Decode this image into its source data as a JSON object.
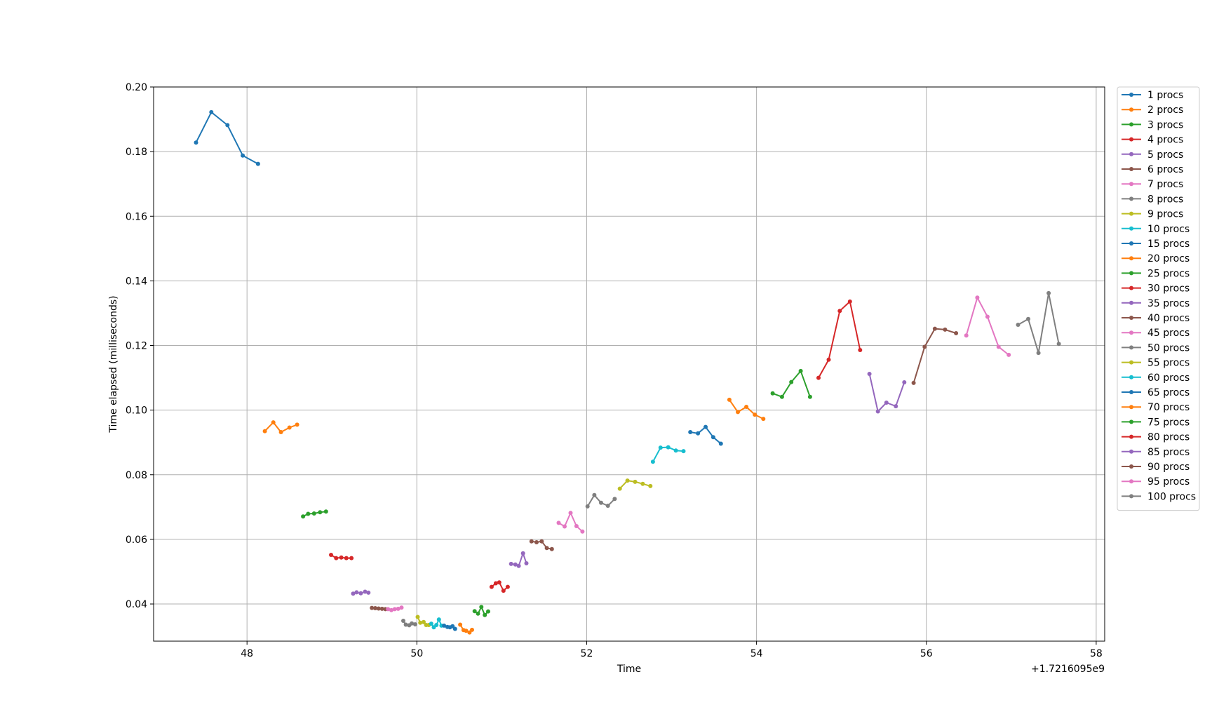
{
  "chart_data": {
    "type": "line",
    "title": "",
    "xlabel": "Time",
    "ylabel": "Time elapsed (milliseconds)",
    "x_offset_label": "+1.7216095e9",
    "xlim": [
      46.9,
      58.1
    ],
    "ylim": [
      0.0285,
      0.2
    ],
    "x_ticks": [
      48,
      50,
      52,
      54,
      56,
      58
    ],
    "x_tick_labels": [
      "48",
      "50",
      "52",
      "54",
      "56",
      "58"
    ],
    "y_ticks": [
      0.04,
      0.06,
      0.08,
      0.1,
      0.12,
      0.14,
      0.16,
      0.18,
      0.2
    ],
    "y_tick_labels": [
      "0.04",
      "0.06",
      "0.08",
      "0.10",
      "0.12",
      "0.14",
      "0.16",
      "0.18",
      "0.20"
    ],
    "grid": true,
    "legend_position": "outside-right",
    "series": [
      {
        "name": "1 procs",
        "color": "#1f77b4",
        "x": [
          47.4,
          47.58,
          47.77,
          47.95,
          48.13
        ],
        "y": [
          0.1828,
          0.1922,
          0.1882,
          0.1788,
          0.1762
        ]
      },
      {
        "name": "2 procs",
        "color": "#ff7f0e",
        "x": [
          48.21,
          48.31,
          48.4,
          48.5,
          48.59
        ],
        "y": [
          0.0935,
          0.0962,
          0.0932,
          0.0946,
          0.0955
        ]
      },
      {
        "name": "3 procs",
        "color": "#2ca02c",
        "x": [
          48.66,
          48.72,
          48.79,
          48.86,
          48.93
        ],
        "y": [
          0.0671,
          0.0679,
          0.068,
          0.0684,
          0.0686
        ]
      },
      {
        "name": "4 procs",
        "color": "#d62728",
        "x": [
          48.99,
          49.05,
          49.11,
          49.17,
          49.23
        ],
        "y": [
          0.0552,
          0.0542,
          0.0544,
          0.0542,
          0.0542
        ]
      },
      {
        "name": "5 procs",
        "color": "#9467bd",
        "x": [
          49.25,
          49.29,
          49.34,
          49.39,
          49.43
        ],
        "y": [
          0.0432,
          0.0436,
          0.0433,
          0.0438,
          0.0435
        ]
      },
      {
        "name": "6 procs",
        "color": "#8c564b",
        "x": [
          49.47,
          49.51,
          49.55,
          49.59,
          49.63
        ],
        "y": [
          0.0388,
          0.0387,
          0.0386,
          0.0385,
          0.0384
        ]
      },
      {
        "name": "7 procs",
        "color": "#e377c2",
        "x": [
          49.66,
          49.7,
          49.74,
          49.78,
          49.82
        ],
        "y": [
          0.0384,
          0.0381,
          0.0384,
          0.0385,
          0.0389
        ]
      },
      {
        "name": "8 procs",
        "color": "#7f7f7f",
        "x": [
          49.84,
          49.87,
          49.91,
          49.94,
          49.98
        ],
        "y": [
          0.0348,
          0.0336,
          0.0334,
          0.034,
          0.0337
        ]
      },
      {
        "name": "9 procs",
        "color": "#bcbd22",
        "x": [
          50.01,
          50.04,
          50.08,
          50.11,
          50.14
        ],
        "y": [
          0.036,
          0.0342,
          0.0344,
          0.0335,
          0.0335
        ]
      },
      {
        "name": "10 procs",
        "color": "#17becf",
        "x": [
          50.17,
          50.2,
          50.23,
          50.26,
          50.29
        ],
        "y": [
          0.0339,
          0.0328,
          0.0335,
          0.0352,
          0.0333
        ]
      },
      {
        "name": "15 procs",
        "color": "#1f77b4",
        "x": [
          50.32,
          50.36,
          50.39,
          50.42,
          50.45
        ],
        "y": [
          0.0333,
          0.0329,
          0.0328,
          0.0331,
          0.0323
        ]
      },
      {
        "name": "20 procs",
        "color": "#ff7f0e",
        "x": [
          50.51,
          50.55,
          50.58,
          50.62,
          50.65
        ],
        "y": [
          0.0336,
          0.0319,
          0.0317,
          0.0312,
          0.032
        ]
      },
      {
        "name": "25 procs",
        "color": "#2ca02c",
        "x": [
          50.68,
          50.72,
          50.76,
          50.8,
          50.84
        ],
        "y": [
          0.0378,
          0.037,
          0.0391,
          0.0366,
          0.0377
        ]
      },
      {
        "name": "30 procs",
        "color": "#d62728",
        "x": [
          50.88,
          50.93,
          50.97,
          51.02,
          51.07
        ],
        "y": [
          0.0453,
          0.0464,
          0.0467,
          0.0441,
          0.0453
        ]
      },
      {
        "name": "35 procs",
        "color": "#9467bd",
        "x": [
          51.11,
          51.16,
          51.2,
          51.25,
          51.29
        ],
        "y": [
          0.0524,
          0.0522,
          0.0518,
          0.0557,
          0.0526
        ]
      },
      {
        "name": "40 procs",
        "color": "#8c564b",
        "x": [
          51.35,
          51.41,
          51.47,
          51.53,
          51.59
        ],
        "y": [
          0.0594,
          0.0591,
          0.0594,
          0.0573,
          0.057
        ]
      },
      {
        "name": "45 procs",
        "color": "#e377c2",
        "x": [
          51.67,
          51.74,
          51.81,
          51.88,
          51.95
        ],
        "y": [
          0.0651,
          0.064,
          0.0682,
          0.0641,
          0.0624
        ]
      },
      {
        "name": "50 procs",
        "color": "#7f7f7f",
        "x": [
          52.01,
          52.09,
          52.17,
          52.25,
          52.33
        ],
        "y": [
          0.0702,
          0.0737,
          0.0713,
          0.0704,
          0.0725
        ]
      },
      {
        "name": "55 procs",
        "color": "#bcbd22",
        "x": [
          52.39,
          52.48,
          52.57,
          52.66,
          52.75
        ],
        "y": [
          0.0757,
          0.0782,
          0.0778,
          0.0772,
          0.0765
        ]
      },
      {
        "name": "60 procs",
        "color": "#17becf",
        "x": [
          52.78,
          52.87,
          52.96,
          53.05,
          53.14
        ],
        "y": [
          0.084,
          0.0884,
          0.0885,
          0.0875,
          0.0873
        ]
      },
      {
        "name": "65 procs",
        "color": "#1f77b4",
        "x": [
          53.22,
          53.31,
          53.4,
          53.49,
          53.58
        ],
        "y": [
          0.0932,
          0.0928,
          0.0948,
          0.0916,
          0.0896
        ]
      },
      {
        "name": "70 procs",
        "color": "#ff7f0e",
        "x": [
          53.68,
          53.78,
          53.88,
          53.98,
          54.08
        ],
        "y": [
          0.1032,
          0.0994,
          0.101,
          0.0986,
          0.0973
        ]
      },
      {
        "name": "75 procs",
        "color": "#2ca02c",
        "x": [
          54.19,
          54.3,
          54.41,
          54.52,
          54.63
        ],
        "y": [
          0.1052,
          0.1041,
          0.1087,
          0.1121,
          0.1041
        ]
      },
      {
        "name": "80 procs",
        "color": "#d62728",
        "x": [
          54.73,
          54.85,
          54.98,
          55.1,
          55.22
        ],
        "y": [
          0.11,
          0.1156,
          0.1307,
          0.1336,
          0.1186
        ]
      },
      {
        "name": "85 procs",
        "color": "#9467bd",
        "x": [
          55.33,
          55.43,
          55.53,
          55.64,
          55.74
        ],
        "y": [
          0.1112,
          0.0996,
          0.1023,
          0.1012,
          0.1086
        ]
      },
      {
        "name": "90 procs",
        "color": "#8c564b",
        "x": [
          55.85,
          55.98,
          56.1,
          56.22,
          56.35
        ],
        "y": [
          0.1084,
          0.1196,
          0.1252,
          0.1249,
          0.1238
        ]
      },
      {
        "name": "95 procs",
        "color": "#e377c2",
        "x": [
          56.47,
          56.6,
          56.72,
          56.85,
          56.97
        ],
        "y": [
          0.1231,
          0.1348,
          0.1289,
          0.1196,
          0.1171
        ]
      },
      {
        "name": "100 procs",
        "color": "#7f7f7f",
        "x": [
          57.08,
          57.2,
          57.32,
          57.44,
          57.56
        ],
        "y": [
          0.1264,
          0.1282,
          0.1177,
          0.1362,
          0.1205
        ]
      }
    ]
  }
}
